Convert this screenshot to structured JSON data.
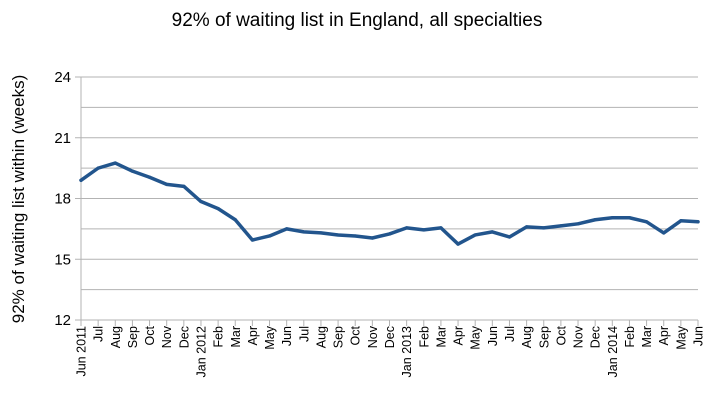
{
  "chart_data": {
    "type": "line",
    "title": "92% of waiting list in England, all specialties",
    "ylabel": "92% of waiting list within (weeks)",
    "xlabel": "",
    "ylim": [
      12,
      24
    ],
    "yticks": [
      "12",
      "15",
      "18",
      "21",
      "24"
    ],
    "grid": true,
    "legend": "none",
    "line_color": "#22558d",
    "grid_color": "#b3b3b3",
    "axis_color": "#b3b3b3",
    "categories": [
      "Jun 2011",
      "Jul",
      "Aug",
      "Sep",
      "Oct",
      "Nov",
      "Dec",
      "Jan 2012",
      "Feb",
      "Mar",
      "Apr",
      "May",
      "Jun",
      "Jul",
      "Aug",
      "Sep",
      "Oct",
      "Nov",
      "Dec",
      "Jan 2013",
      "Feb",
      "Mar",
      "Apr",
      "May",
      "Jun",
      "Jul",
      "Aug",
      "Sep",
      "Oct",
      "Nov",
      "Dec",
      "Jan 2014",
      "Feb",
      "Mar",
      "Apr",
      "May",
      "Jun"
    ],
    "series": [
      {
        "values": [
          18.9,
          19.5,
          19.75,
          19.35,
          19.05,
          18.7,
          18.6,
          17.85,
          17.5,
          16.95,
          15.95,
          16.15,
          16.5,
          16.35,
          16.3,
          16.2,
          16.15,
          16.05,
          16.25,
          16.55,
          16.45,
          16.55,
          15.75,
          16.2,
          16.35,
          16.1,
          16.6,
          16.55,
          16.65,
          16.75,
          16.95,
          17.05,
          17.05,
          16.85,
          16.3,
          16.9,
          16.85
        ]
      }
    ]
  }
}
